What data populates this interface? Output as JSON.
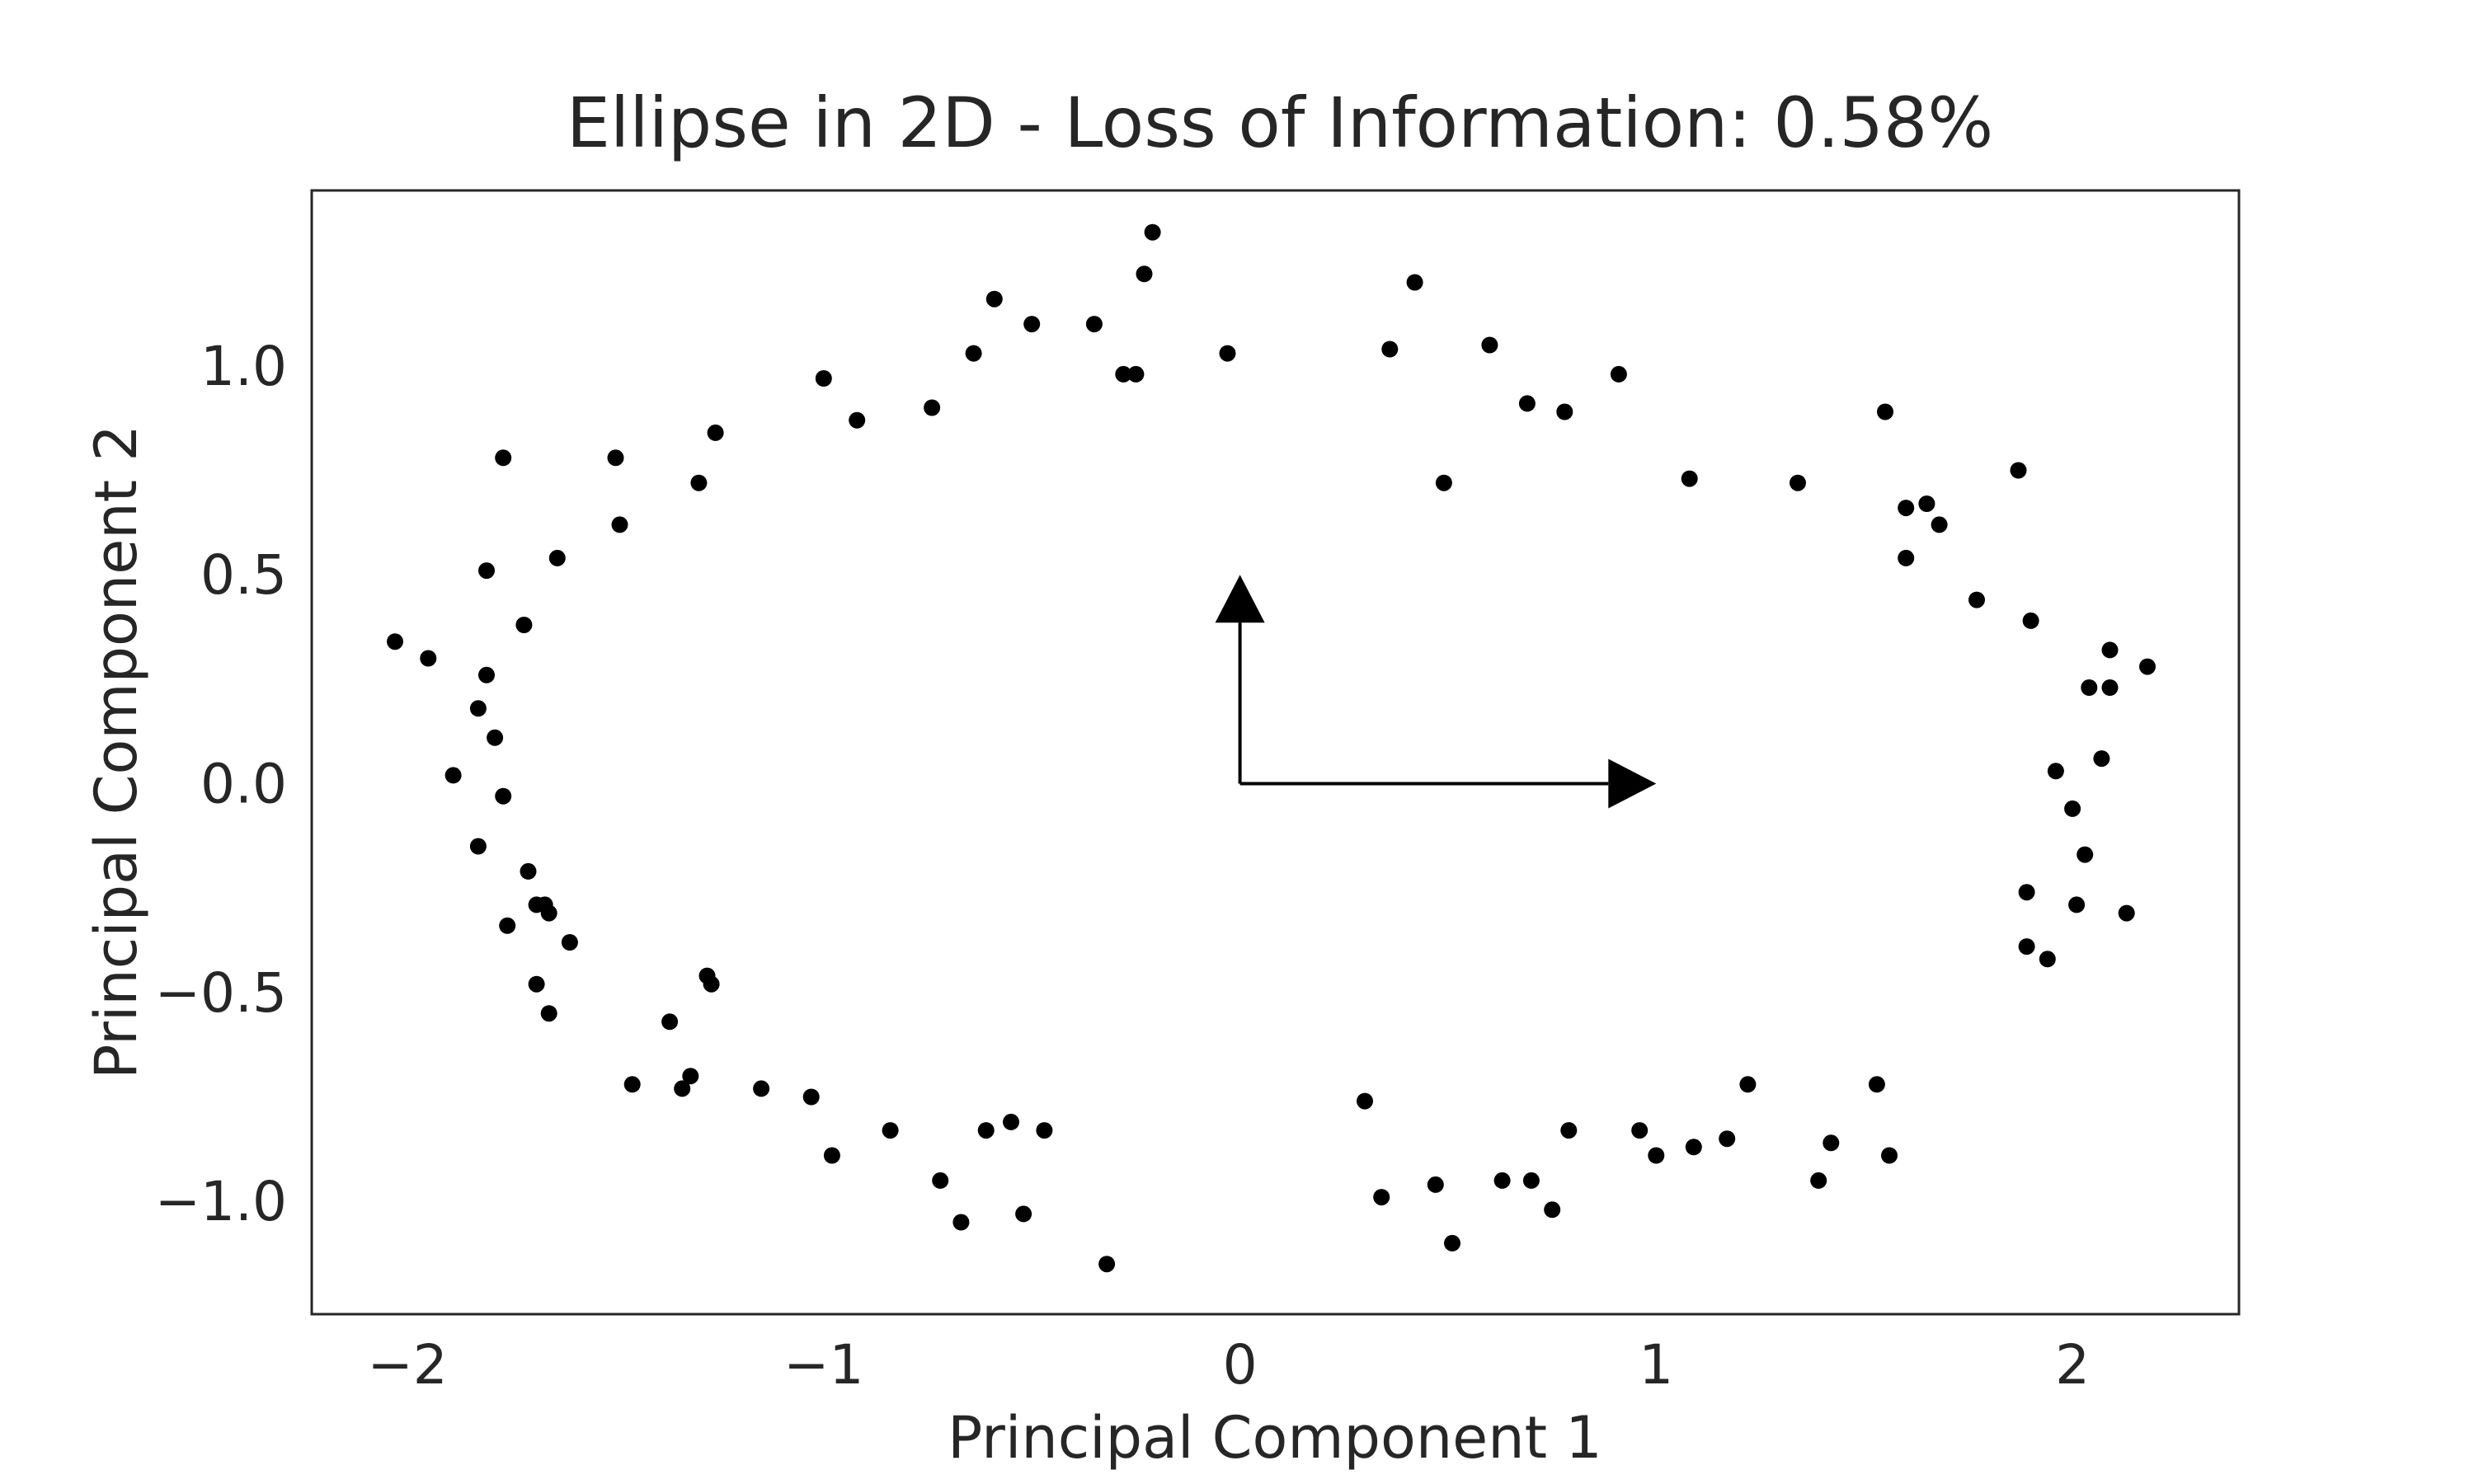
{
  "chart_data": {
    "type": "scatter",
    "title": "Ellipse in 2D - Loss of Information: 0.58%",
    "xlabel": "Principal Component 1",
    "ylabel": "Principal Component 2",
    "xlim": [
      -2.23,
      2.4
    ],
    "ylim": [
      -1.27,
      1.42
    ],
    "xticks": [
      -2,
      -1,
      0,
      1,
      2
    ],
    "xtick_labels": [
      "−2",
      "−1",
      "0",
      "1",
      "2"
    ],
    "yticks": [
      -1.0,
      -0.5,
      0.0,
      0.5,
      1.0
    ],
    "ytick_labels": [
      "−1.0",
      "−0.5",
      "0.0",
      "0.5",
      "1.0"
    ],
    "grid": false,
    "point_color": "#000000",
    "arrow_color": "#000000",
    "arrows": [
      {
        "from": [
          0,
          0
        ],
        "to": [
          1.0,
          0.0
        ]
      },
      {
        "from": [
          0,
          0
        ],
        "to": [
          0.0,
          0.5
        ]
      }
    ],
    "points": [
      [
        -2.03,
        0.34
      ],
      [
        -1.95,
        0.3
      ],
      [
        -1.89,
        0.02
      ],
      [
        -1.83,
        -0.15
      ],
      [
        -1.83,
        0.18
      ],
      [
        -1.81,
        0.26
      ],
      [
        -1.81,
        0.51
      ],
      [
        -1.79,
        0.11
      ],
      [
        -1.77,
        -0.03
      ],
      [
        -1.77,
        0.78
      ],
      [
        -1.76,
        -0.34
      ],
      [
        -1.72,
        0.38
      ],
      [
        -1.71,
        -0.21
      ],
      [
        -1.69,
        -0.48
      ],
      [
        -1.69,
        -0.29
      ],
      [
        -1.67,
        -0.29
      ],
      [
        -1.66,
        -0.31
      ],
      [
        -1.66,
        -0.55
      ],
      [
        -1.64,
        0.54
      ],
      [
        -1.61,
        -0.38
      ],
      [
        -1.5,
        0.78
      ],
      [
        -1.49,
        0.62
      ],
      [
        -1.46,
        -0.72
      ],
      [
        -1.37,
        -0.57
      ],
      [
        -1.34,
        -0.73
      ],
      [
        -1.32,
        -0.7
      ],
      [
        -1.3,
        0.72
      ],
      [
        -1.28,
        -0.46
      ],
      [
        -1.27,
        -0.48
      ],
      [
        -1.26,
        0.84
      ],
      [
        -1.15,
        -0.73
      ],
      [
        -1.03,
        -0.75
      ],
      [
        -1.0,
        0.97
      ],
      [
        -0.98,
        -0.89
      ],
      [
        -0.92,
        0.87
      ],
      [
        -0.84,
        -0.83
      ],
      [
        -0.74,
        0.9
      ],
      [
        -0.72,
        -0.95
      ],
      [
        -0.67,
        -1.05
      ],
      [
        -0.64,
        1.03
      ],
      [
        -0.61,
        -0.83
      ],
      [
        -0.59,
        1.16
      ],
      [
        -0.55,
        -0.81
      ],
      [
        -0.52,
        -1.03
      ],
      [
        -0.5,
        1.1
      ],
      [
        -0.47,
        -0.83
      ],
      [
        -0.35,
        1.1
      ],
      [
        -0.32,
        -1.15
      ],
      [
        -0.28,
        0.98
      ],
      [
        -0.25,
        0.98
      ],
      [
        -0.23,
        1.22
      ],
      [
        -0.21,
        1.32
      ],
      [
        -0.03,
        1.03
      ],
      [
        0.3,
        -0.76
      ],
      [
        0.34,
        -0.99
      ],
      [
        0.36,
        1.04
      ],
      [
        0.42,
        1.2
      ],
      [
        0.47,
        -0.96
      ],
      [
        0.49,
        0.72
      ],
      [
        0.51,
        -1.1
      ],
      [
        0.6,
        1.05
      ],
      [
        0.63,
        -0.95
      ],
      [
        0.69,
        0.91
      ],
      [
        0.7,
        -0.95
      ],
      [
        0.75,
        -1.02
      ],
      [
        0.78,
        0.89
      ],
      [
        0.79,
        -0.83
      ],
      [
        0.91,
        0.98
      ],
      [
        0.96,
        -0.83
      ],
      [
        1.0,
        -0.89
      ],
      [
        1.08,
        0.73
      ],
      [
        1.09,
        -0.87
      ],
      [
        1.17,
        -0.85
      ],
      [
        1.22,
        -0.72
      ],
      [
        1.34,
        0.72
      ],
      [
        1.39,
        -0.95
      ],
      [
        1.42,
        -0.86
      ],
      [
        1.53,
        -0.72
      ],
      [
        1.55,
        0.89
      ],
      [
        1.56,
        -0.89
      ],
      [
        1.6,
        0.66
      ],
      [
        1.6,
        0.54
      ],
      [
        1.65,
        0.67
      ],
      [
        1.68,
        0.62
      ],
      [
        1.77,
        0.44
      ],
      [
        1.87,
        0.75
      ],
      [
        1.89,
        -0.39
      ],
      [
        1.89,
        -0.26
      ],
      [
        1.9,
        0.39
      ],
      [
        1.94,
        -0.42
      ],
      [
        1.96,
        0.03
      ],
      [
        2.0,
        -0.06
      ],
      [
        2.01,
        -0.29
      ],
      [
        2.03,
        -0.17
      ],
      [
        2.04,
        0.23
      ],
      [
        2.07,
        0.06
      ],
      [
        2.09,
        0.23
      ],
      [
        2.09,
        0.32
      ],
      [
        2.13,
        -0.31
      ],
      [
        2.18,
        0.28
      ]
    ]
  }
}
